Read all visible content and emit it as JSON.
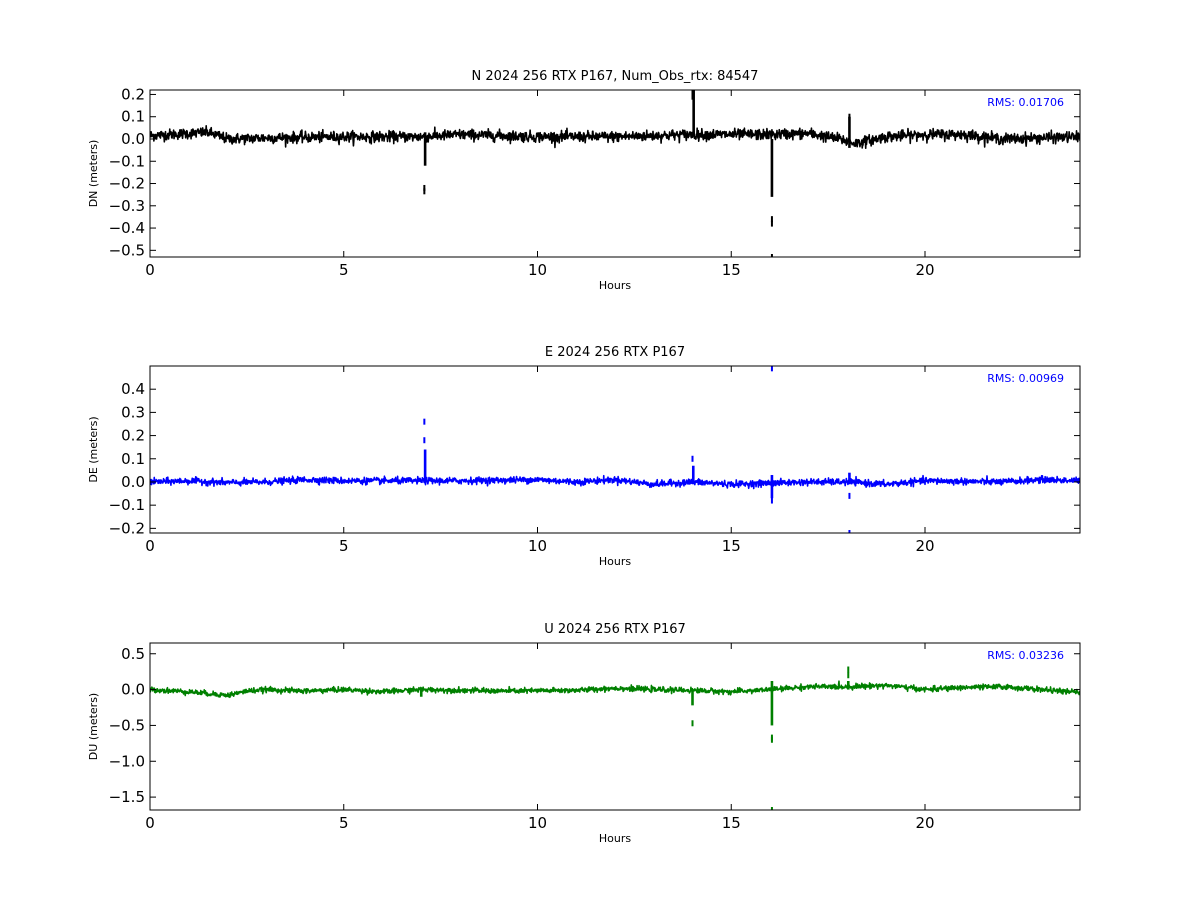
{
  "chart_data": [
    {
      "type": "line",
      "title": "N 2024 256 RTX  P167, Num_Obs_rtx: 84547",
      "xlabel": "Hours",
      "ylabel": "DN (meters)",
      "xlim": [
        0,
        24
      ],
      "ylim": [
        -0.53,
        0.22
      ],
      "xticks": [
        0,
        5,
        10,
        15,
        20
      ],
      "yticks": [
        0.2,
        0.1,
        0.0,
        -0.1,
        -0.2,
        -0.3,
        -0.4,
        -0.5
      ],
      "ytick_labels": [
        "0.2",
        "0.1",
        "0.0",
        "−0.1",
        "−0.2",
        "−0.3",
        "−0.4",
        "−0.5"
      ],
      "grid": false,
      "rms_label": "RMS:  0.01706",
      "series": [
        {
          "color": "#000000",
          "noise": 0.012,
          "trend": [
            [
              0,
              0.015
            ],
            [
              1.5,
              0.03
            ],
            [
              2,
              0.0
            ],
            [
              3,
              0.005
            ],
            [
              5,
              0.01
            ],
            [
              6.5,
              0.01
            ],
            [
              7.0,
              0.01
            ],
            [
              8,
              0.02
            ],
            [
              10,
              0.01
            ],
            [
              12,
              0.01
            ],
            [
              14,
              0.02
            ],
            [
              16,
              0.02
            ],
            [
              17,
              0.025
            ],
            [
              17.8,
              0.0
            ],
            [
              18.2,
              -0.02
            ],
            [
              19,
              0.01
            ],
            [
              20,
              0.02
            ],
            [
              21,
              0.02
            ],
            [
              22,
              0.0
            ],
            [
              24,
              0.01
            ]
          ],
          "spikes": [
            {
              "x": 7.1,
              "ymin": -0.12,
              "ymax": 0.03
            },
            {
              "x": 14.03,
              "ymin": 0.02,
              "ymax": 0.22
            },
            {
              "x": 16.05,
              "ymin": -0.26,
              "ymax": 0.0
            },
            {
              "x": 18.05,
              "ymin": -0.04,
              "ymax": 0.1
            }
          ],
          "outliers": [
            [
              7.08,
              -0.22
            ],
            [
              7.08,
              -0.235
            ],
            [
              14.0,
              0.21
            ],
            [
              14.0,
              0.19
            ],
            [
              16.05,
              -0.36
            ],
            [
              16.05,
              -0.38
            ],
            [
              16.05,
              -0.53
            ],
            [
              18.05,
              0.1
            ],
            [
              18.05,
              0.04
            ]
          ]
        }
      ]
    },
    {
      "type": "line",
      "title": "E 2024 256 RTX  P167",
      "xlabel": "Hours",
      "ylabel": "DE (meters)",
      "xlim": [
        0,
        24
      ],
      "ylim": [
        -0.22,
        0.5
      ],
      "xticks": [
        0,
        5,
        10,
        15,
        20
      ],
      "yticks": [
        0.4,
        0.3,
        0.2,
        0.1,
        0.0,
        -0.1,
        -0.2
      ],
      "ytick_labels": [
        "0.4",
        "0.3",
        "0.2",
        "0.1",
        "0.0",
        "−0.1",
        "−0.2"
      ],
      "grid": false,
      "rms_label": "RMS:  0.00969",
      "series": [
        {
          "color": "#0000ff",
          "noise": 0.007,
          "trend": [
            [
              0,
              0.0
            ],
            [
              1,
              0.005
            ],
            [
              2,
              -0.003
            ],
            [
              3,
              0.0
            ],
            [
              4,
              0.01
            ],
            [
              5,
              0.005
            ],
            [
              6,
              0.005
            ],
            [
              7,
              0.005
            ],
            [
              8,
              0.005
            ],
            [
              10,
              0.01
            ],
            [
              11,
              0.0
            ],
            [
              12,
              0.01
            ],
            [
              13,
              -0.01
            ],
            [
              14,
              0.0
            ],
            [
              15,
              -0.01
            ],
            [
              16,
              -0.005
            ],
            [
              17,
              0.0
            ],
            [
              18,
              0.0
            ],
            [
              19,
              -0.01
            ],
            [
              20,
              0.005
            ],
            [
              22,
              0.0
            ],
            [
              23,
              0.01
            ],
            [
              24,
              0.005
            ]
          ],
          "spikes": [
            {
              "x": 7.1,
              "ymin": 0.0,
              "ymax": 0.14
            },
            {
              "x": 14.02,
              "ymin": -0.01,
              "ymax": 0.07
            },
            {
              "x": 16.05,
              "ymin": -0.07,
              "ymax": 0.03
            },
            {
              "x": 18.05,
              "ymin": -0.01,
              "ymax": 0.04
            }
          ],
          "outliers": [
            [
              7.08,
              0.26
            ],
            [
              7.08,
              0.18
            ],
            [
              14.0,
              0.1
            ],
            [
              16.05,
              0.49
            ],
            [
              16.05,
              -0.08
            ],
            [
              18.05,
              -0.06
            ],
            [
              18.05,
              -0.22
            ]
          ]
        }
      ]
    },
    {
      "type": "line",
      "title": "U 2024 256 RTX  P167",
      "xlabel": "Hours",
      "ylabel": "DU (meters)",
      "xlim": [
        0,
        24
      ],
      "ylim": [
        -1.68,
        0.65
      ],
      "xticks": [
        0,
        5,
        10,
        15,
        20
      ],
      "yticks": [
        0.5,
        0.0,
        -0.5,
        -1.0,
        -1.5
      ],
      "ytick_labels": [
        "0.5",
        "0.0",
        "−0.5",
        "−1.0",
        "−1.5"
      ],
      "grid": false,
      "rms_label": "RMS:  0.03236",
      "series": [
        {
          "color": "#008000",
          "noise": 0.018,
          "trend": [
            [
              0,
              0.0
            ],
            [
              1,
              -0.03
            ],
            [
              2,
              -0.08
            ],
            [
              2.5,
              -0.02
            ],
            [
              3,
              0.0
            ],
            [
              4,
              -0.02
            ],
            [
              5,
              0.0
            ],
            [
              6,
              -0.03
            ],
            [
              7,
              0.0
            ],
            [
              8,
              -0.01
            ],
            [
              9,
              -0.02
            ],
            [
              11,
              -0.01
            ],
            [
              12,
              0.02
            ],
            [
              13,
              0.0
            ],
            [
              14,
              -0.01
            ],
            [
              15,
              -0.03
            ],
            [
              16,
              0.0
            ],
            [
              17,
              0.04
            ],
            [
              18,
              0.04
            ],
            [
              19,
              0.06
            ],
            [
              20,
              0.0
            ],
            [
              21,
              0.03
            ],
            [
              22,
              0.04
            ],
            [
              23,
              0.0
            ],
            [
              24,
              -0.04
            ]
          ],
          "spikes": [
            {
              "x": 7.0,
              "ymin": -0.1,
              "ymax": 0.03
            },
            {
              "x": 14.0,
              "ymin": -0.22,
              "ymax": 0.0
            },
            {
              "x": 16.05,
              "ymin": -0.5,
              "ymax": 0.12
            },
            {
              "x": 18.02,
              "ymin": 0.0,
              "ymax": 0.12
            }
          ],
          "outliers": [
            [
              14.0,
              -0.47
            ],
            [
              16.05,
              -0.7
            ],
            [
              16.05,
              -0.67
            ],
            [
              16.05,
              -1.68
            ],
            [
              18.02,
              0.28
            ],
            [
              18.02,
              0.2
            ]
          ]
        }
      ]
    }
  ]
}
